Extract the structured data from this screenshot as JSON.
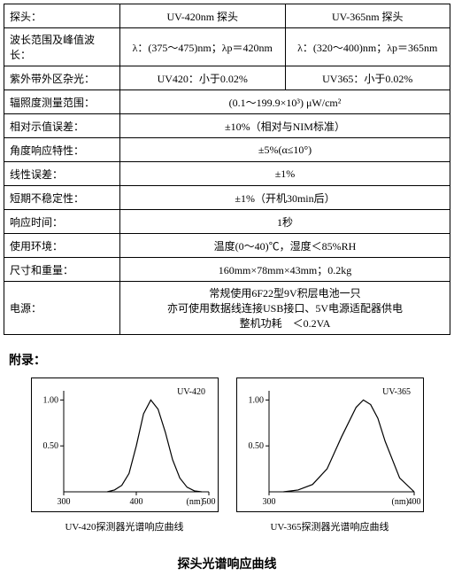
{
  "table": {
    "rows": [
      {
        "label": "探头：",
        "c1": "UV-420nm 探头",
        "c2": "UV-365nm 探头"
      },
      {
        "label": "波长范围及峰值波长：",
        "c1": "λ：(375～475)nm；λp＝420nm",
        "c2": "λ：(320～400)nm；λp＝365nm"
      },
      {
        "label": "紫外带外区杂光：",
        "c1": "UV420：小于0.02%",
        "c2": "UV365：小于0.02%"
      },
      {
        "label": "辐照度测量范围：",
        "full": "(0.1～199.9×10³) μW/cm²"
      },
      {
        "label": "相对示值误差：",
        "full": "±10%（相对与NIM标准）"
      },
      {
        "label": "角度响应特性：",
        "full": "±5%(α≤10°)"
      },
      {
        "label": "线性误差：",
        "full": "±1%"
      },
      {
        "label": "短期不稳定性：",
        "full": "±1%（开机30min后）"
      },
      {
        "label": "响应时间：",
        "full": "1秒"
      },
      {
        "label": "使用环境：",
        "full": "温度(0～40)℃，湿度＜85%RH"
      },
      {
        "label": "尺寸和重量：",
        "full": "160mm×78mm×43mm；0.2kg"
      },
      {
        "label": "电源：",
        "full": "常规使用6F22型9V积层电池一只\n亦可使用数据线连接USB接口、5V电源适配器供电\n整机功耗　＜0.2VA"
      }
    ]
  },
  "appendix_label": "附录：",
  "charts_title": "探头光谱响应曲线",
  "chart1": {
    "type": "line",
    "title_inside": "UV-420",
    "caption": "UV-420探测器光谱响应曲线",
    "xlabel": "(nm)",
    "xlim": [
      300,
      500
    ],
    "xticks": [
      300,
      400,
      500
    ],
    "ylim": [
      0,
      1.1
    ],
    "yticks": [
      0.5,
      1.0
    ],
    "ytick_labels": [
      "0.50",
      "1.00"
    ],
    "x": [
      360,
      370,
      380,
      390,
      400,
      410,
      420,
      430,
      440,
      450,
      460,
      470,
      480,
      490
    ],
    "y": [
      0.0,
      0.02,
      0.07,
      0.2,
      0.5,
      0.85,
      1.0,
      0.9,
      0.65,
      0.35,
      0.15,
      0.05,
      0.01,
      0.0
    ],
    "line_color": "#000000",
    "background_color": "#ffffff",
    "axis_color": "#000000",
    "line_width": 1.2,
    "tick_fontsize": 10
  },
  "chart2": {
    "type": "line",
    "title_inside": "UV-365",
    "caption": "UV-365探测器光谱响应曲线",
    "xlabel": "(nm)",
    "xlim": [
      300,
      400
    ],
    "xticks": [
      300,
      400
    ],
    "ylim": [
      0,
      1.1
    ],
    "yticks": [
      0.5,
      1.0
    ],
    "ytick_labels": [
      "0.50",
      "1.00"
    ],
    "x": [
      310,
      320,
      330,
      340,
      350,
      360,
      365,
      370,
      375,
      380,
      390,
      400
    ],
    "y": [
      0.0,
      0.02,
      0.08,
      0.25,
      0.6,
      0.92,
      1.0,
      0.95,
      0.8,
      0.55,
      0.15,
      0.0
    ],
    "line_color": "#000000",
    "background_color": "#ffffff",
    "axis_color": "#000000",
    "line_width": 1.2,
    "tick_fontsize": 10
  }
}
